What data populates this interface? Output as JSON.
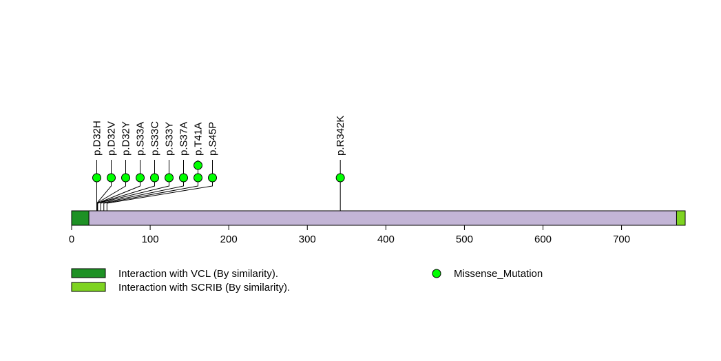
{
  "chart_data": {
    "type": "lollipop",
    "protein_length": 781,
    "axis": {
      "xlim": [
        0,
        781
      ],
      "ticks": [
        0,
        100,
        200,
        300,
        400,
        500,
        600,
        700
      ],
      "tick_labels": [
        "0",
        "100",
        "200",
        "300",
        "400",
        "500",
        "600",
        "700"
      ]
    },
    "backbone_color": "#c3b5d6",
    "domains": [
      {
        "name": "Interaction with VCL (By similarity).",
        "start": 1,
        "end": 22,
        "color": "#1e9125"
      },
      {
        "name": "Interaction with SCRIB (By similarity).",
        "start": 771,
        "end": 781,
        "color": "#7ed321"
      }
    ],
    "mutations": [
      {
        "label": "p.D32H",
        "position": 32,
        "count": 1,
        "type": "Missense_Mutation"
      },
      {
        "label": "p.D32V",
        "position": 32,
        "count": 1,
        "type": "Missense_Mutation"
      },
      {
        "label": "p.D32Y",
        "position": 32,
        "count": 1,
        "type": "Missense_Mutation"
      },
      {
        "label": "p.S33A",
        "position": 33,
        "count": 1,
        "type": "Missense_Mutation"
      },
      {
        "label": "p.S33C",
        "position": 33,
        "count": 1,
        "type": "Missense_Mutation"
      },
      {
        "label": "p.S33Y",
        "position": 33,
        "count": 1,
        "type": "Missense_Mutation"
      },
      {
        "label": "p.S37A",
        "position": 37,
        "count": 1,
        "type": "Missense_Mutation"
      },
      {
        "label": "p.T41A",
        "position": 41,
        "count": 2,
        "type": "Missense_Mutation"
      },
      {
        "label": "p.S45P",
        "position": 45,
        "count": 1,
        "type": "Missense_Mutation"
      },
      {
        "label": "p.R342K",
        "position": 342,
        "count": 1,
        "type": "Missense_Mutation"
      }
    ],
    "legend": {
      "domains": [
        "Interaction with VCL (By similarity).",
        "Interaction with SCRIB (By similarity)."
      ],
      "mutation_types": [
        {
          "name": "Missense_Mutation",
          "color": "#00ff00"
        }
      ]
    }
  }
}
